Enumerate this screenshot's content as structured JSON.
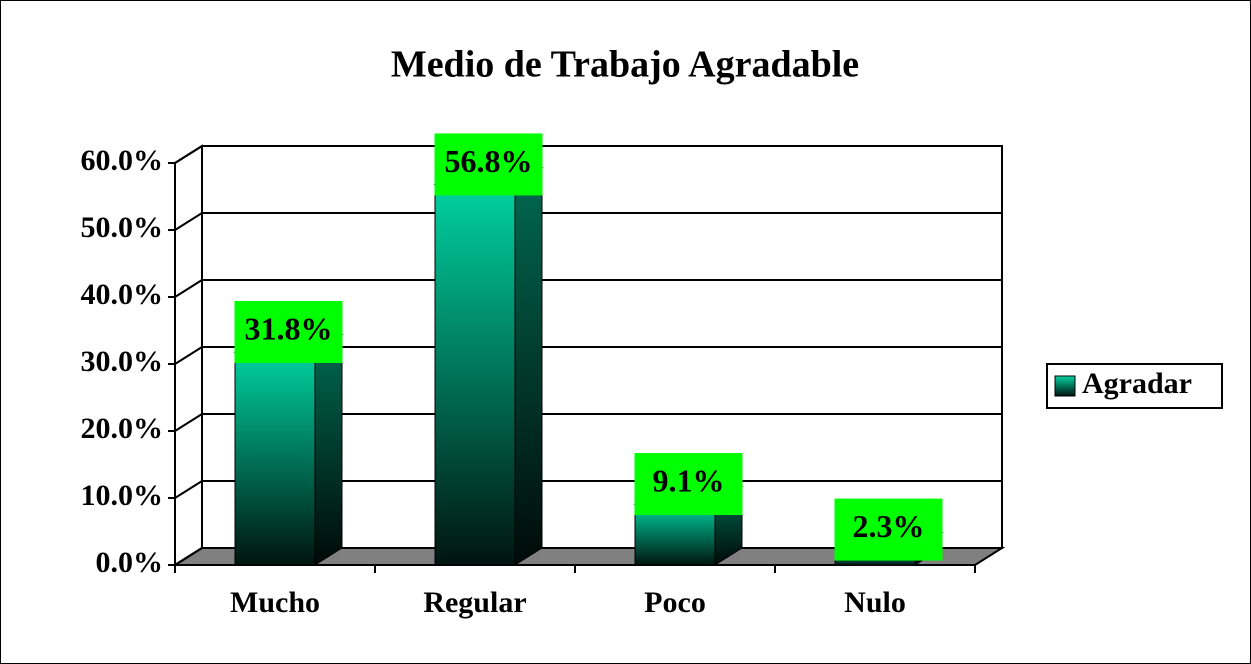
{
  "chart_data": {
    "type": "bar3d",
    "title": "Medio de Trabajo Agradable",
    "categories": [
      "Mucho",
      "Regular",
      "Poco",
      "Nulo"
    ],
    "series": [
      {
        "name": "Agradar",
        "color": "#00cc99",
        "values": [
          31.8,
          56.8,
          9.1,
          2.3
        ],
        "value_labels": [
          "31.8%",
          "56.8%",
          "9.1%",
          "2.3%"
        ]
      }
    ],
    "ylim": [
      0,
      60
    ],
    "yticks": [
      {
        "value": 0,
        "label": "0.0%"
      },
      {
        "value": 10,
        "label": "10.0%"
      },
      {
        "value": 20,
        "label": "20.0%"
      },
      {
        "value": 30,
        "label": "30.0%"
      },
      {
        "value": 40,
        "label": "40.0%"
      },
      {
        "value": 50,
        "label": "50.0%"
      },
      {
        "value": 60,
        "label": "60.0%"
      }
    ],
    "grid": true,
    "legend": "right"
  }
}
